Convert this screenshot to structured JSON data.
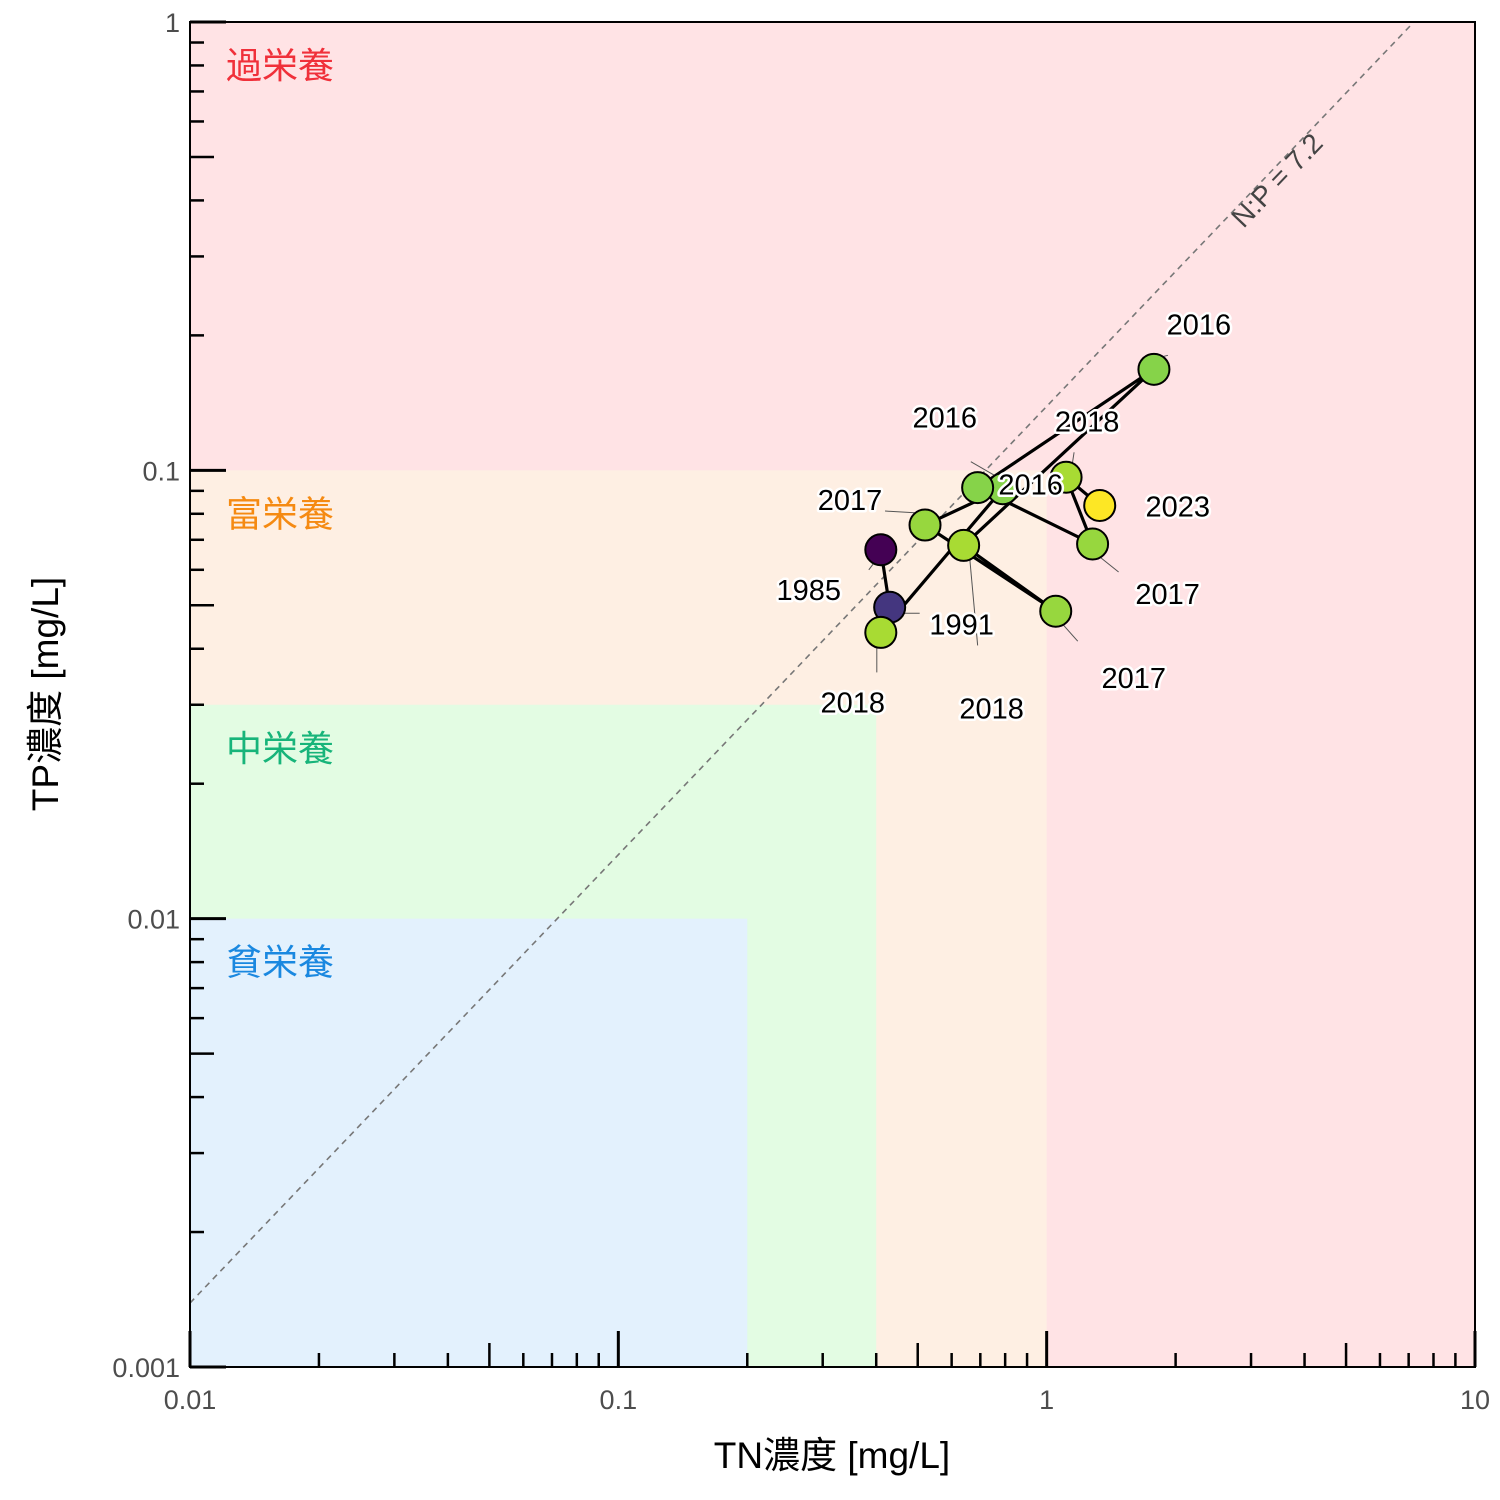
{
  "chart_data": {
    "type": "scatter",
    "xlabel": "TN濃度 [mg/L]",
    "ylabel": "TP濃度 [mg/L]",
    "x_scale": "log",
    "y_scale": "log",
    "xlim": [
      0.01,
      10
    ],
    "ylim": [
      0.001,
      1
    ],
    "x_ticks": [
      {
        "value": 0.01,
        "label": "0.01"
      },
      {
        "value": 0.1,
        "label": "0.1"
      },
      {
        "value": 1,
        "label": "1"
      },
      {
        "value": 10,
        "label": "10"
      }
    ],
    "y_ticks": [
      {
        "value": 0.001,
        "label": "0.001"
      },
      {
        "value": 0.01,
        "label": "0.01"
      },
      {
        "value": 0.1,
        "label": "0.1"
      },
      {
        "value": 1,
        "label": "1"
      }
    ],
    "grid": false,
    "zones": [
      {
        "label": "過栄養",
        "tn_max": 10,
        "tp_max": 1,
        "fill": "#ffe3e5",
        "text_color": "#f0303a"
      },
      {
        "label": "富栄養",
        "tn_max": 1,
        "tp_max": 0.1,
        "fill": "#feefe3",
        "text_color": "#f58a12"
      },
      {
        "label": "中栄養",
        "tn_max": 0.4,
        "tp_max": 0.03,
        "fill": "#e3fce3",
        "text_color": "#17b47a"
      },
      {
        "label": "貧栄養",
        "tn_max": 0.2,
        "tp_max": 0.01,
        "fill": "#e3f1fd",
        "text_color": "#1a88e0"
      }
    ],
    "reference_line": {
      "label": "N:P = 7.2",
      "ratio": 7.2,
      "style": "dashed",
      "color": "#777777"
    },
    "color_scale": "viridis",
    "year_range": [
      1985,
      2023
    ],
    "points": [
      {
        "year": 1985,
        "label": "1985",
        "tn": 0.41,
        "tp": 0.0665
      },
      {
        "year": 1991,
        "label": "1991",
        "tn": 0.43,
        "tp": 0.0495
      },
      {
        "year": 2018,
        "label": "2018",
        "tn": 0.41,
        "tp": 0.0435
      },
      {
        "year": 2016,
        "label": "2016",
        "tn": 0.79,
        "tp": 0.091
      },
      {
        "year": 2017,
        "label": "2017",
        "tn": 0.52,
        "tp": 0.0755
      },
      {
        "year": 2017,
        "label": "2017",
        "tn": 1.05,
        "tp": 0.0485
      },
      {
        "year": 2018,
        "label": "2018",
        "tn": 0.64,
        "tp": 0.068
      },
      {
        "year": 2016,
        "label": "2016",
        "tn": 1.78,
        "tp": 0.168
      },
      {
        "year": 2016,
        "label": "2016",
        "tn": 0.69,
        "tp": 0.0915
      },
      {
        "year": 2017,
        "label": "2017",
        "tn": 1.28,
        "tp": 0.0685
      },
      {
        "year": 2018,
        "label": "2018",
        "tn": 1.11,
        "tp": 0.0965
      },
      {
        "year": 2023,
        "label": "2023",
        "tn": 1.33,
        "tp": 0.0835
      }
    ]
  }
}
